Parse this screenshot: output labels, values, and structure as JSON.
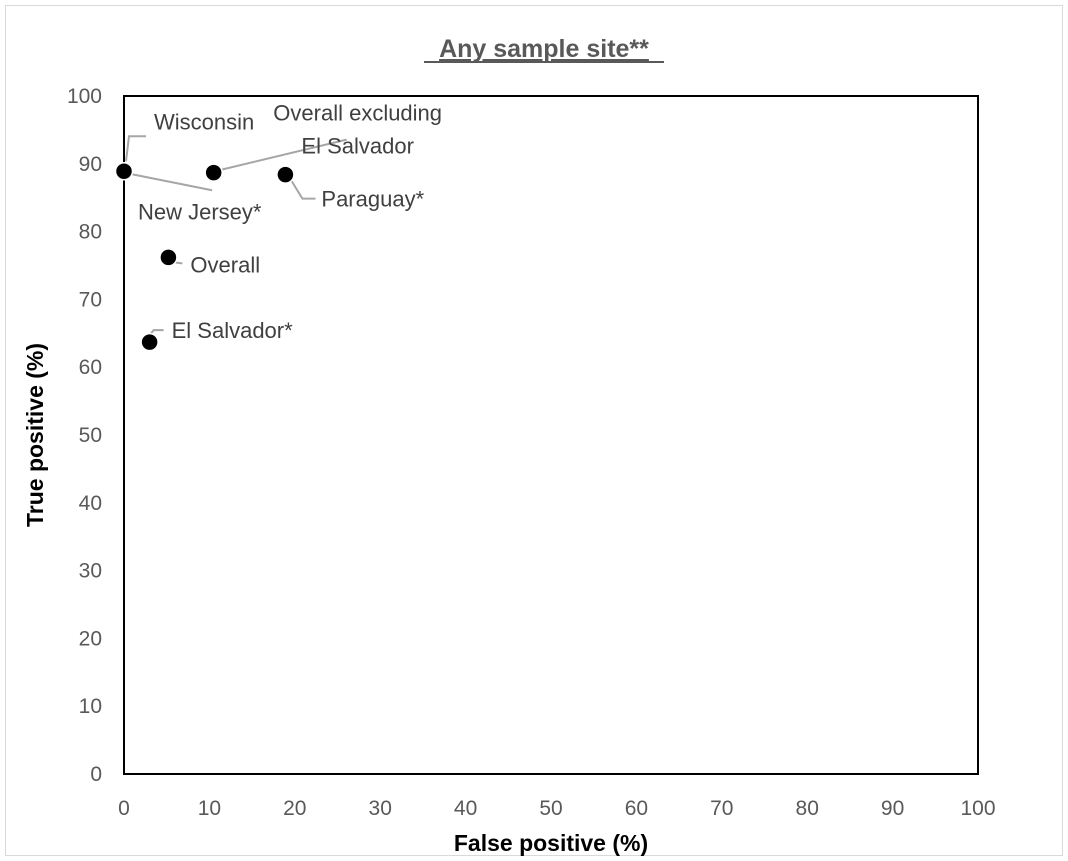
{
  "chart_data": {
    "type": "scatter",
    "title": "Any sample site**",
    "xlabel": "False positive (%)",
    "ylabel": "True positive (%)",
    "xlim": [
      0,
      100
    ],
    "ylim": [
      0,
      100
    ],
    "xticks": [
      "0",
      "10",
      "20",
      "30",
      "40",
      "50",
      "60",
      "70",
      "80",
      "90",
      "100"
    ],
    "yticks": [
      "0",
      "10",
      "20",
      "30",
      "40",
      "50",
      "60",
      "70",
      "80",
      "90",
      "100"
    ],
    "grid": false,
    "legend": "none",
    "marker_color": "#000000",
    "leader_color": "#a6a6a6",
    "points": [
      {
        "label": "Wisconsin",
        "x": 0,
        "y": 88.9
      },
      {
        "label": "New Jersey*",
        "x": 0,
        "y": 88.9
      },
      {
        "label": "Overall excluding El Salvador",
        "label_lines": [
          "Overall excluding",
          "El Salvador"
        ],
        "x": 10.5,
        "y": 88.7
      },
      {
        "label": "Paraguay*",
        "x": 18.9,
        "y": 88.4
      },
      {
        "label": "Overall",
        "x": 5.2,
        "y": 76.2
      },
      {
        "label": "El Salvador*",
        "x": 3.0,
        "y": 63.7
      }
    ]
  }
}
